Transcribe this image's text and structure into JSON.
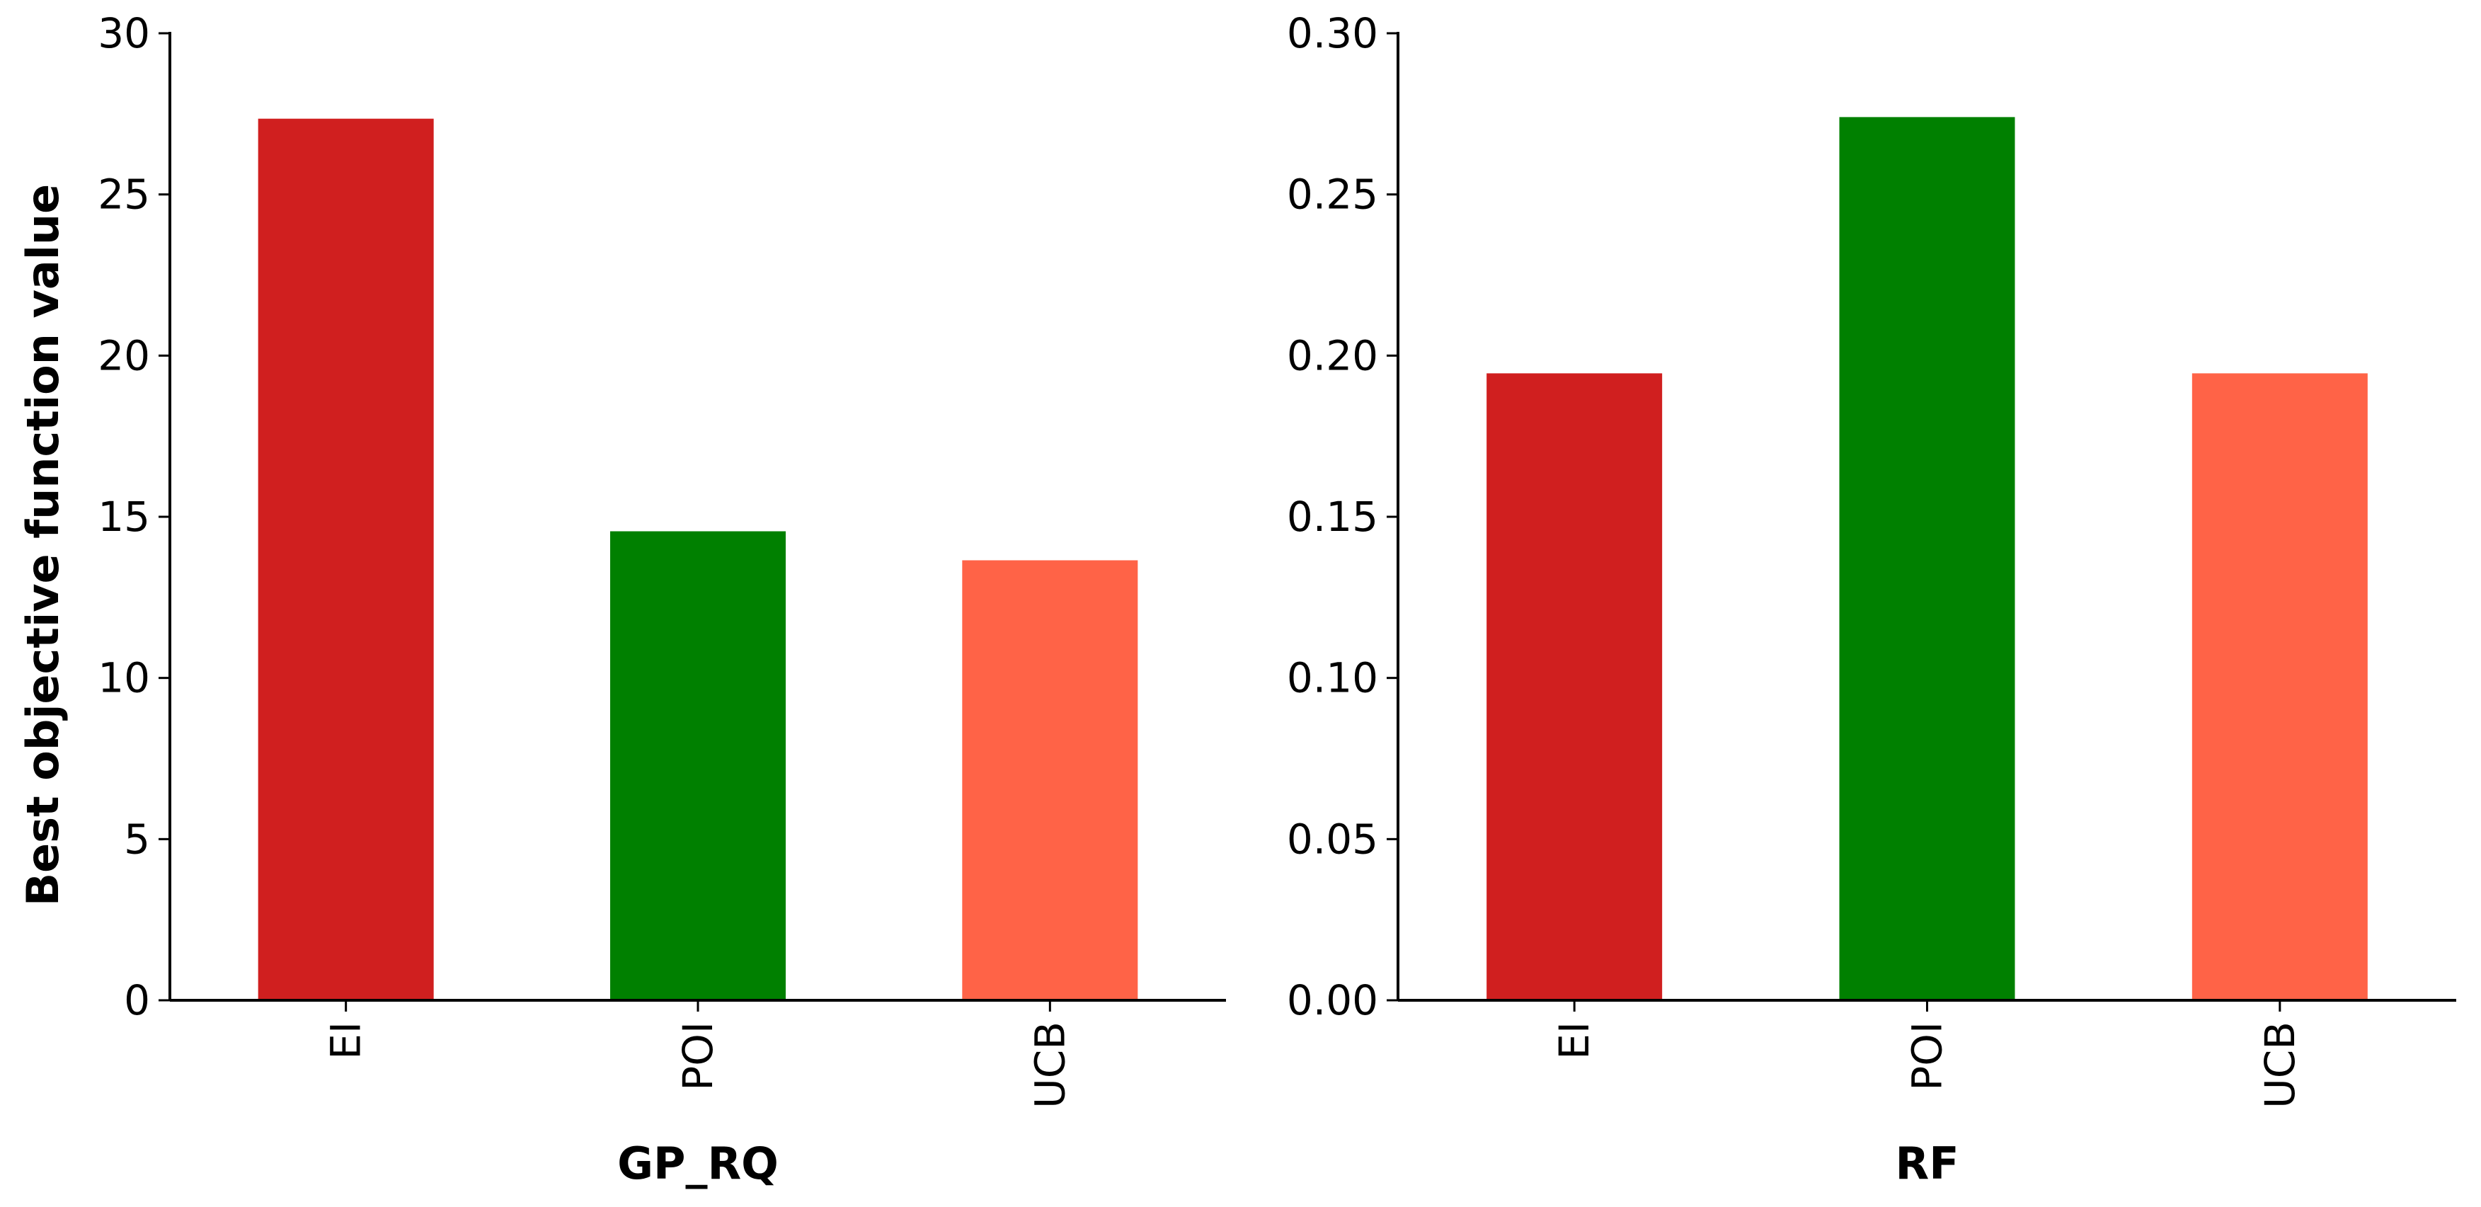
{
  "chart_data": [
    {
      "type": "bar",
      "categories": [
        "EI",
        "POI",
        "UCB"
      ],
      "values": [
        27.35,
        14.55,
        13.65
      ],
      "colors": [
        "#d01f1f",
        "#008000",
        "#ff6347"
      ],
      "xlabel": "GP_RQ",
      "ylabel": "Best objective function value",
      "ylim": [
        0,
        30
      ],
      "yticks": [
        "0",
        "5",
        "10",
        "15",
        "20",
        "25",
        "30"
      ],
      "ytick_values": [
        0,
        5,
        10,
        15,
        20,
        25,
        30
      ],
      "grid": false,
      "legend": "none"
    },
    {
      "type": "bar",
      "categories": [
        "EI",
        "POI",
        "UCB"
      ],
      "values": [
        0.1945,
        0.274,
        0.1945
      ],
      "colors": [
        "#d01f1f",
        "#008000",
        "#ff6347"
      ],
      "xlabel": "RF",
      "ylabel": "",
      "ylim": [
        0,
        0.3
      ],
      "yticks": [
        "0.00",
        "0.05",
        "0.10",
        "0.15",
        "0.20",
        "0.25",
        "0.30"
      ],
      "ytick_values": [
        0,
        0.05,
        0.1,
        0.15,
        0.2,
        0.25,
        0.3
      ],
      "grid": false,
      "legend": "none"
    }
  ]
}
